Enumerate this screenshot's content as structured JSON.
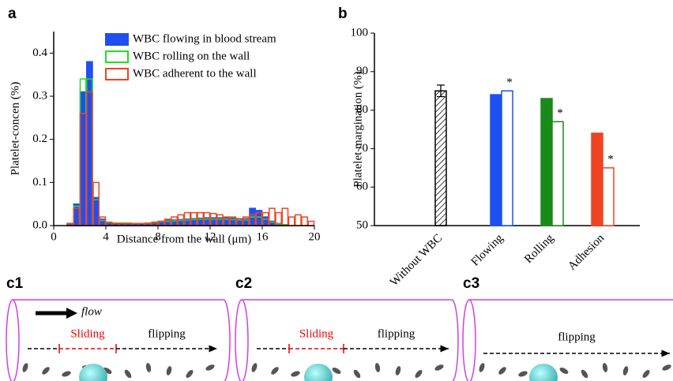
{
  "chart_data": [
    {
      "type": "histogram",
      "panel_label": "a",
      "xlabel": "Distance from the wall (μm)",
      "ylabel": "Platelet-concen (%)",
      "bins": [
        0,
        0.5,
        1,
        1.5,
        2,
        2.5,
        3,
        3.5,
        4,
        4.5,
        5,
        5.5,
        6,
        6.5,
        7,
        7.5,
        8,
        8.5,
        9,
        9.5,
        10,
        10.5,
        11,
        11.5,
        12,
        12.5,
        13,
        13.5,
        14,
        14.5,
        15,
        15.5,
        16,
        16.5,
        17,
        17.5,
        18,
        18.5,
        19,
        19.5,
        20
      ],
      "xlim": [
        0,
        20
      ],
      "xticks": [
        0,
        4,
        8,
        12,
        16,
        20
      ],
      "ylim": [
        0,
        0.45
      ],
      "yticks": [
        {
          "value": 0,
          "label": "0.0"
        },
        0.1,
        0.2,
        0.3,
        0.4
      ],
      "series": [
        {
          "name": "WBC flowing in blood stream",
          "color": "#1f4ff0",
          "style": "filled",
          "values": [
            0,
            0,
            0.005,
            0.05,
            0.31,
            0.38,
            0.065,
            0.015,
            0.007,
            0.005,
            0.005,
            0.005,
            0.004,
            0.004,
            0.005,
            0.008,
            0.01,
            0.012,
            0.013,
            0.014,
            0.015,
            0.016,
            0.017,
            0.018,
            0.018,
            0.018,
            0.018,
            0.017,
            0.016,
            0.016,
            0.04,
            0.035,
            0.02,
            0.01,
            0.005,
            0.002,
            0,
            0,
            0,
            0
          ]
        },
        {
          "name": "WBC rolling on the wall",
          "color": "#22dd22",
          "style": "outline",
          "values": [
            0,
            0,
            0.004,
            0.045,
            0.34,
            0.34,
            0.06,
            0.012,
            0.007,
            0.006,
            0.006,
            0.006,
            0.005,
            0.005,
            0.005,
            0.007,
            0.009,
            0.01,
            0.011,
            0.012,
            0.013,
            0.014,
            0.015,
            0.015,
            0.015,
            0.015,
            0.015,
            0.014,
            0.013,
            0.013,
            0.02,
            0.02,
            0.015,
            0.008,
            0.004,
            0.002,
            0,
            0,
            0,
            0
          ]
        },
        {
          "name": "WBC adherent to the wall",
          "color": "#ee4422",
          "style": "outline",
          "values": [
            0,
            0,
            0.004,
            0.04,
            0.26,
            0.31,
            0.1,
            0.02,
            0.008,
            0.005,
            0.005,
            0.005,
            0.005,
            0.005,
            0.006,
            0.008,
            0.01,
            0.015,
            0.02,
            0.025,
            0.03,
            0.03,
            0.03,
            0.03,
            0.028,
            0.025,
            0.02,
            0.02,
            0.015,
            0.02,
            0.025,
            0.03,
            0.03,
            0.04,
            0.03,
            0.04,
            0.02,
            0.025,
            0.02,
            0.01
          ]
        }
      ]
    },
    {
      "type": "bar",
      "panel_label": "b",
      "ylabel": "Platelet margination (%)",
      "categories": [
        "Without WBC",
        "Flowing",
        "Rolling",
        "Adhesion"
      ],
      "ylim": [
        50,
        100
      ],
      "yticks": [
        50,
        60,
        70,
        80,
        90,
        100
      ],
      "groups": [
        [
          {
            "value": 85,
            "error": 1.5,
            "color": "#000000",
            "fill": "hatch"
          }
        ],
        [
          {
            "value": 84,
            "color": "#1f4ff0",
            "fill": "solid"
          },
          {
            "value": 85,
            "color": "#1f4ff0",
            "fill": "open",
            "annotation": "*"
          }
        ],
        [
          {
            "value": 83,
            "color": "#1a8a1a",
            "fill": "solid"
          },
          {
            "value": 77,
            "color": "#1a8a1a",
            "fill": "open",
            "annotation": "*"
          }
        ],
        [
          {
            "value": 74,
            "color": "#ee4422",
            "fill": "solid"
          },
          {
            "value": 65,
            "color": "#ee4422",
            "fill": "open",
            "annotation": "*"
          }
        ]
      ]
    }
  ],
  "diagrams": [
    {
      "label": "c1",
      "flow": "flow",
      "sliding": "Sliding",
      "flipping": "flipping"
    },
    {
      "label": "c2",
      "sliding": "Sliding",
      "flipping": "flipping"
    },
    {
      "label": "c3",
      "flipping": "flipping"
    }
  ]
}
